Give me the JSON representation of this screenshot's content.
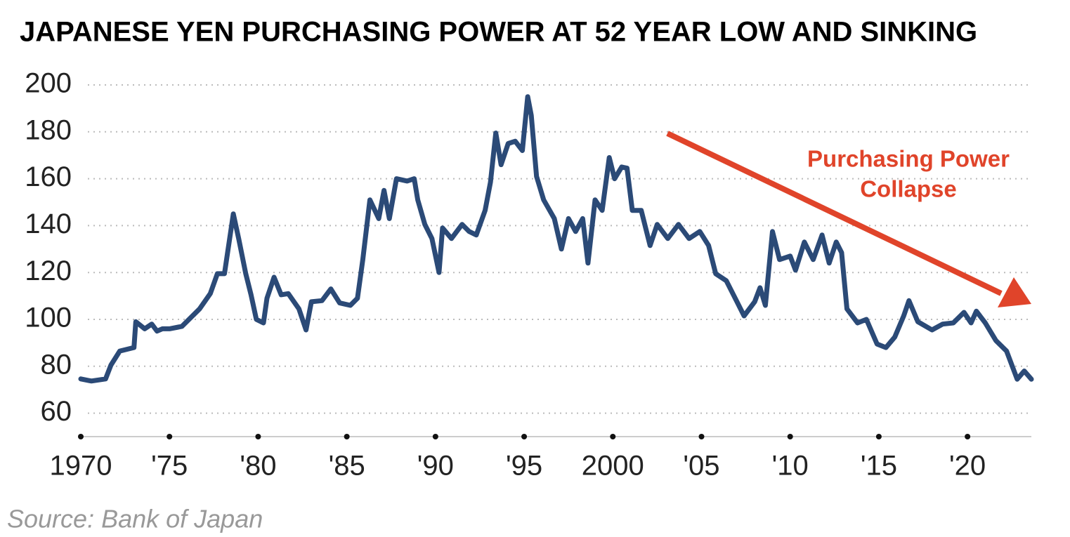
{
  "chart_data": {
    "type": "line",
    "title": "JAPANESE YEN PURCHASING POWER AT 52 YEAR LOW AND SINKING",
    "annotations": [
      "Purchasing Power",
      "Collapse"
    ],
    "source": "Source: Bank of Japan",
    "x": [
      1970.0,
      1970.6,
      1971.4,
      1971.7,
      1972.2,
      1973,
      1973.1,
      1973.6,
      1974,
      1974.3,
      1974.6,
      1975,
      1975.7,
      1976.1,
      1976.7,
      1977.3,
      1977.7,
      1978.1,
      1978.6,
      1978.9,
      1979.3,
      1979.6,
      1979.9,
      1980.3,
      1980.5,
      1980.9,
      1981.3,
      1981.7,
      1982.3,
      1982.7,
      1983,
      1983.6,
      1984.1,
      1984.6,
      1985.2,
      1985.6,
      1985.9,
      1986.3,
      1986.8,
      1987.1,
      1987.4,
      1987.8,
      1988.4,
      1988.8,
      1989,
      1989.4,
      1989.8,
      1990.2,
      1990.4,
      1990.9,
      1991.5,
      1991.9,
      1992.3,
      1992.8,
      1993.1,
      1993.4,
      1993.7,
      1994.1,
      1994.5,
      1994.9,
      1995.2,
      1995.4,
      1995.7,
      1996.1,
      1996.7,
      1997.1,
      1997.5,
      1997.9,
      1998.3,
      1998.6,
      1999,
      1999.4,
      1999.8,
      2000.1,
      2000.5,
      2000.8,
      2001.1,
      2001.6,
      2002.1,
      2002.5,
      2003.1,
      2003.7,
      2004.3,
      2004.9,
      2005.4,
      2005.8,
      2006.4,
      2007,
      2007.4,
      2008,
      2008.3,
      2008.6,
      2009,
      2009.4,
      2010,
      2010.3,
      2010.8,
      2011.3,
      2011.8,
      2012.2,
      2012.6,
      2012.9,
      2013.2,
      2013.8,
      2014.3,
      2014.9,
      2015.4,
      2015.9,
      2016.4,
      2016.7,
      2017.2,
      2018,
      2018.6,
      2019.2,
      2019.8,
      2020.2,
      2020.5,
      2021,
      2021.6,
      2022.2,
      2022.8,
      2023.2,
      2023.6
    ],
    "series": [
      {
        "color": "#2b4a77",
        "values": [
          74.6,
          73.7,
          74.6,
          80.5,
          86.5,
          88,
          99,
          96,
          98,
          95,
          96,
          96,
          97,
          100,
          104.5,
          111,
          119.5,
          119.5,
          145,
          134.5,
          119.5,
          110.5,
          100,
          98.5,
          109,
          118,
          110.5,
          111,
          104.5,
          95.5,
          107.5,
          108,
          113,
          107,
          106,
          109,
          125.5,
          151,
          143,
          155,
          143,
          160,
          159,
          160,
          151,
          140.5,
          134.5,
          120,
          139,
          134.5,
          140.5,
          137.5,
          136,
          146.5,
          158.5,
          179.5,
          166,
          175,
          176,
          172,
          195,
          187,
          161,
          151,
          143,
          130,
          143,
          137.5,
          143,
          124,
          151,
          146.5,
          169,
          160,
          165,
          164.5,
          146.5,
          146.5,
          131.5,
          140.5,
          134.5,
          140.5,
          134.5,
          137.5,
          131.5,
          119.5,
          116.5,
          107.5,
          101.5,
          107.5,
          113.5,
          106,
          137.5,
          125.5,
          127,
          121,
          133,
          125.5,
          136,
          124,
          133,
          128.5,
          104.5,
          98.5,
          100,
          89.5,
          88,
          92.5,
          101.5,
          108,
          99,
          95.5,
          98,
          98.5,
          103,
          98.5,
          103.5,
          98.5,
          91,
          86.5,
          74.5,
          78,
          74.5
        ]
      }
    ],
    "xlim": [
      1970,
      2023.6
    ],
    "xticks": [
      1970,
      {
        "value": 1975,
        "label": "'75"
      },
      {
        "value": 1980,
        "label": "'80"
      },
      {
        "value": 1985,
        "label": "'85"
      },
      {
        "value": 1990,
        "label": "'90"
      },
      {
        "value": 1995,
        "label": "'95"
      },
      2000,
      {
        "value": 2005,
        "label": "'05"
      },
      {
        "value": 2010,
        "label": "'10"
      },
      {
        "value": 2015,
        "label": "'15"
      },
      {
        "value": 2020,
        "label": "'20"
      }
    ],
    "ylim": [
      50,
      200
    ],
    "yticks": [
      60,
      80,
      100,
      120,
      140,
      160,
      180,
      200
    ],
    "grid": true,
    "annotation_color": "#e0442a"
  }
}
